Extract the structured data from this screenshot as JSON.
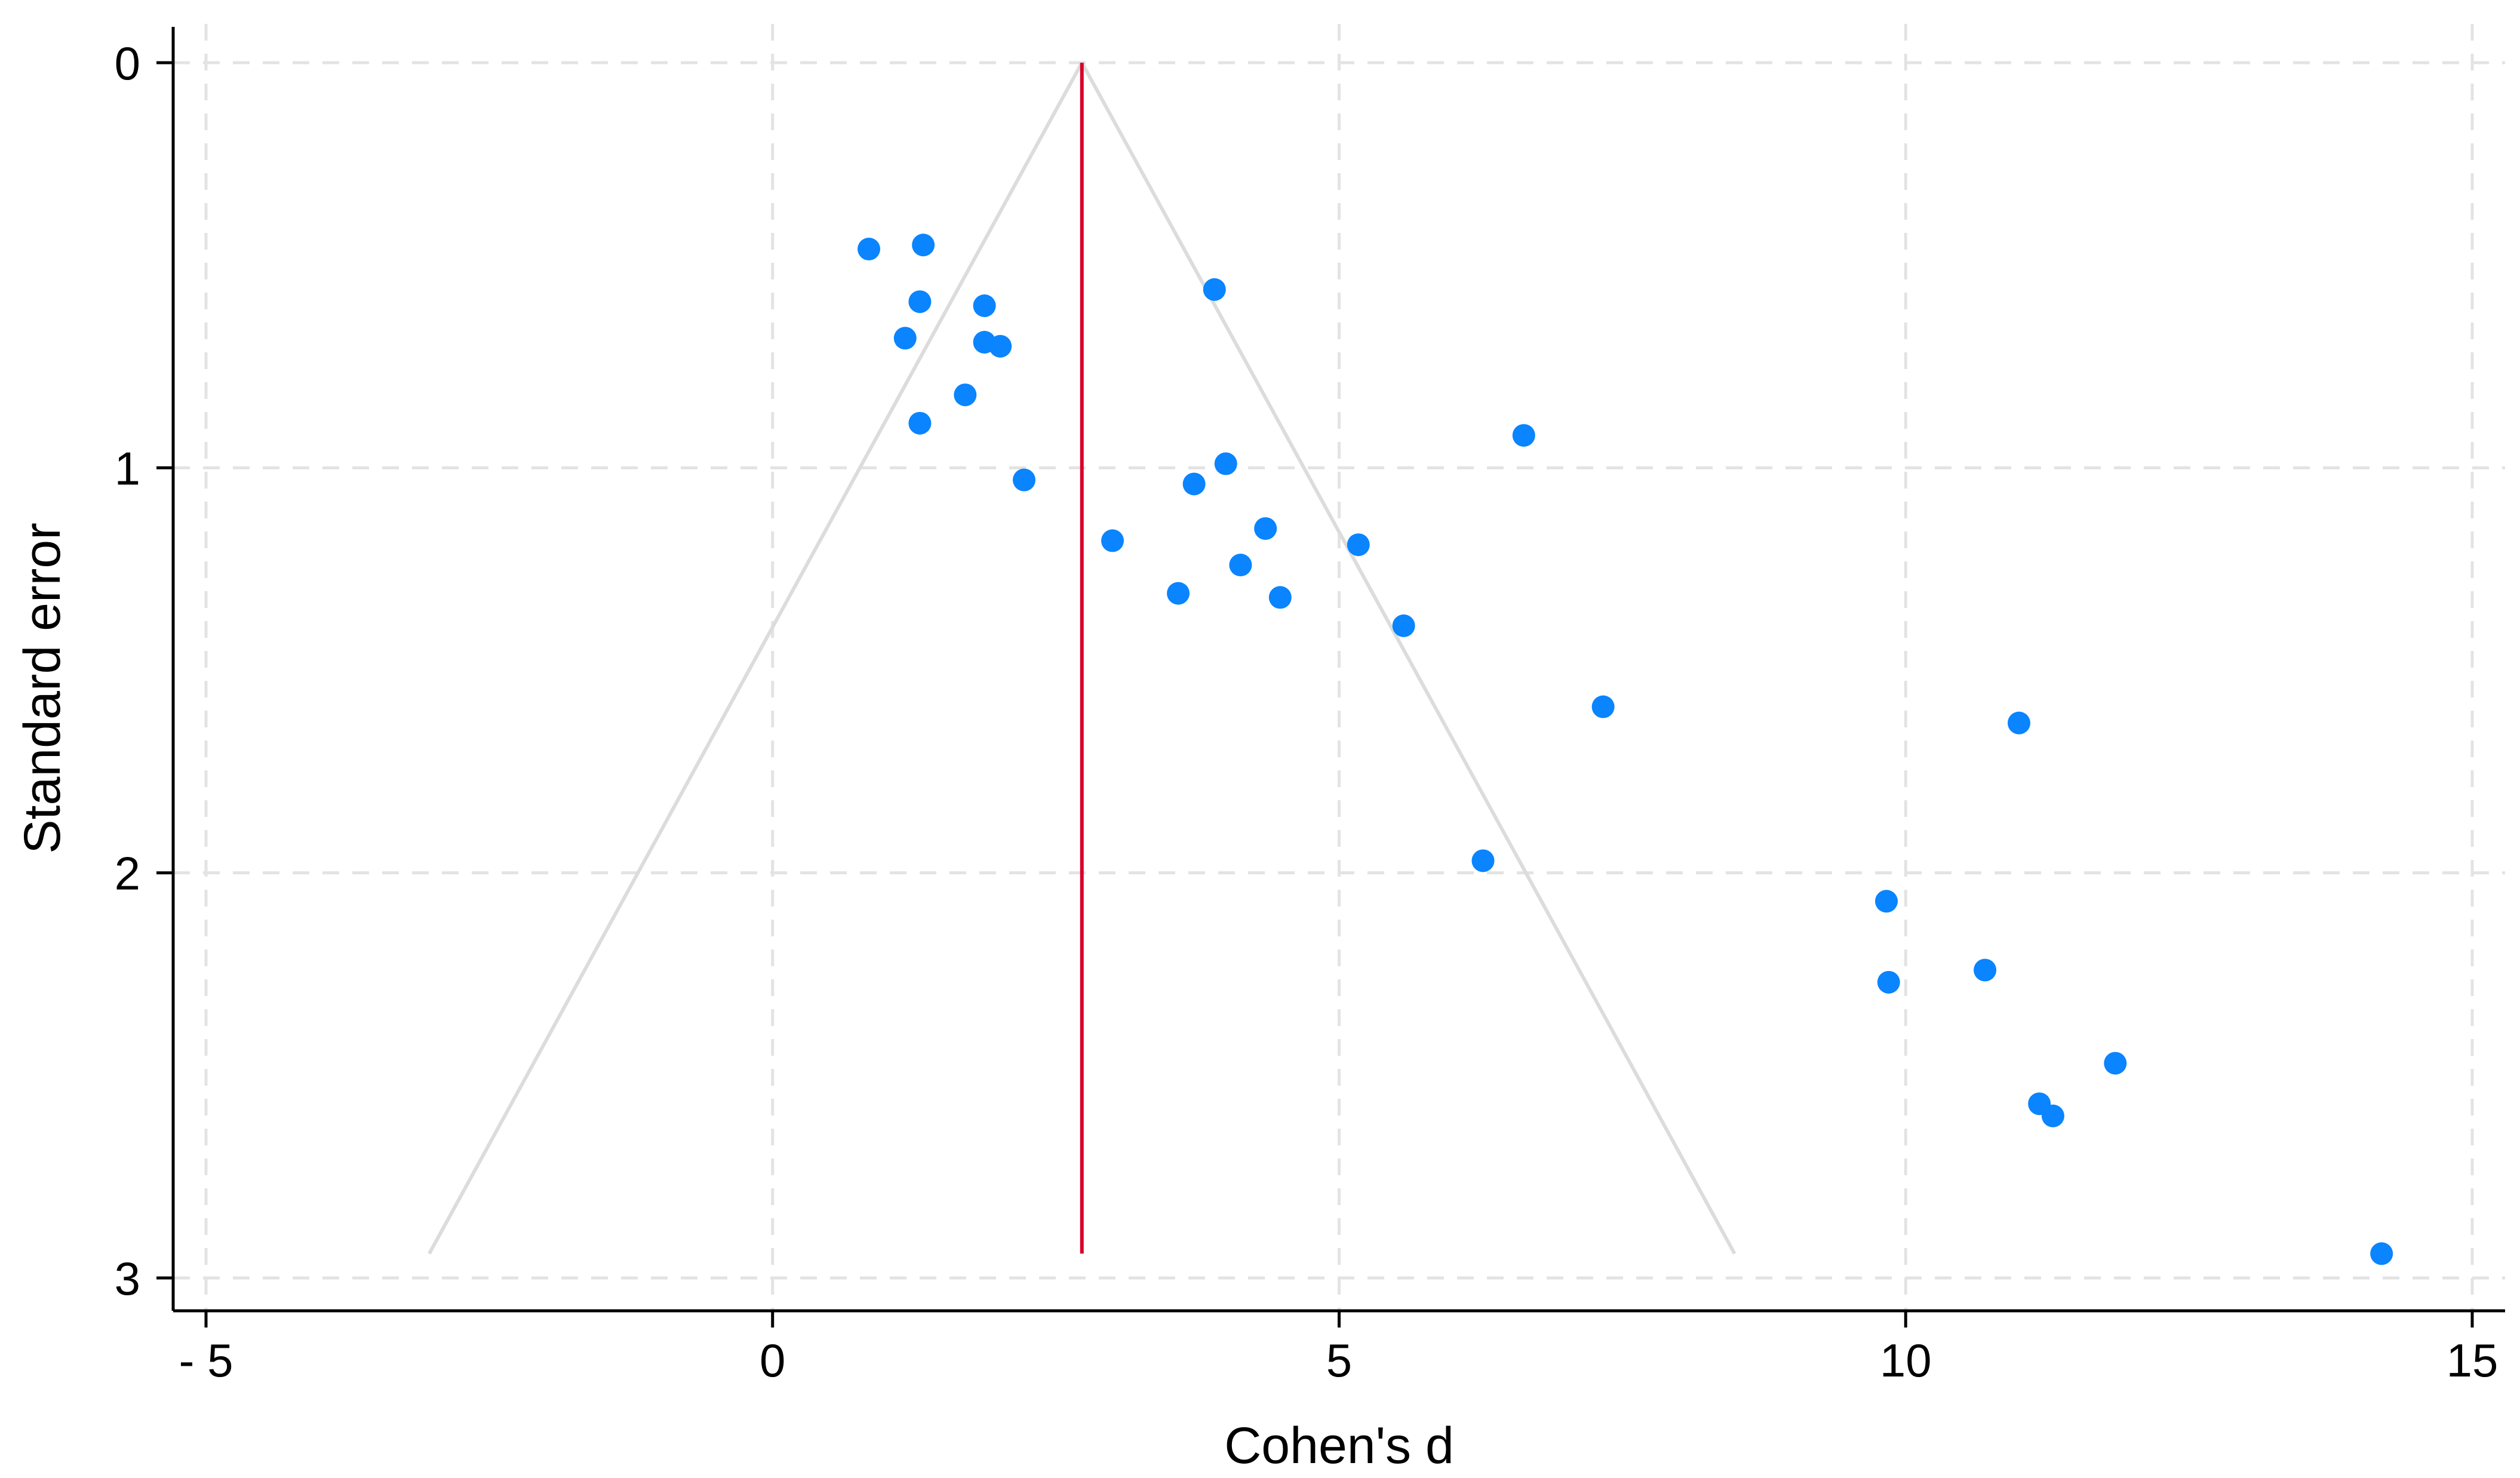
{
  "chart_data": {
    "type": "scatter",
    "title": "",
    "xlabel": "Cohen's d",
    "ylabel": "Standard error",
    "xlim": [
      -5,
      15
    ],
    "ylim": [
      0,
      3
    ],
    "y_axis_reversed": true,
    "x_ticks": [
      -5,
      0,
      5,
      10,
      15
    ],
    "x_tick_labels": [
      "- 5",
      "0",
      "5",
      "10",
      "15"
    ],
    "y_ticks": [
      0,
      1,
      2,
      3
    ],
    "y_tick_labels": [
      "0",
      "1",
      "2",
      "3"
    ],
    "grid": true,
    "legend": "none",
    "colors": {
      "points": "#0a84ff",
      "reference_line": "#d6002a",
      "funnel": "#dcdcdc",
      "grid": "#e3e3e3"
    },
    "reference_line": {
      "x": 2.73
    },
    "funnel": {
      "apex": {
        "x": 2.73,
        "y": 0
      },
      "base_left": {
        "x": -3.03,
        "y": 2.94
      },
      "base_right": {
        "x": 8.49,
        "y": 2.94
      }
    },
    "points": [
      {
        "x": 0.85,
        "y": 0.46
      },
      {
        "x": 1.33,
        "y": 0.45
      },
      {
        "x": 1.3,
        "y": 0.59
      },
      {
        "x": 1.87,
        "y": 0.6
      },
      {
        "x": 1.17,
        "y": 0.68
      },
      {
        "x": 1.87,
        "y": 0.69
      },
      {
        "x": 2.01,
        "y": 0.7
      },
      {
        "x": 1.7,
        "y": 0.82
      },
      {
        "x": 1.3,
        "y": 0.89
      },
      {
        "x": 2.22,
        "y": 1.03
      },
      {
        "x": 3.9,
        "y": 0.56
      },
      {
        "x": 6.63,
        "y": 0.92
      },
      {
        "x": 4.0,
        "y": 0.99
      },
      {
        "x": 3.72,
        "y": 1.04
      },
      {
        "x": 3.0,
        "y": 1.18
      },
      {
        "x": 4.35,
        "y": 1.15
      },
      {
        "x": 5.17,
        "y": 1.19
      },
      {
        "x": 4.13,
        "y": 1.24
      },
      {
        "x": 3.58,
        "y": 1.31
      },
      {
        "x": 4.48,
        "y": 1.32
      },
      {
        "x": 5.57,
        "y": 1.39
      },
      {
        "x": 7.33,
        "y": 1.59
      },
      {
        "x": 11.0,
        "y": 1.63
      },
      {
        "x": 6.27,
        "y": 1.97
      },
      {
        "x": 9.83,
        "y": 2.07
      },
      {
        "x": 9.85,
        "y": 2.27
      },
      {
        "x": 10.7,
        "y": 2.24
      },
      {
        "x": 11.85,
        "y": 2.47
      },
      {
        "x": 11.18,
        "y": 2.57
      },
      {
        "x": 11.3,
        "y": 2.6
      },
      {
        "x": 14.2,
        "y": 2.94
      }
    ]
  }
}
